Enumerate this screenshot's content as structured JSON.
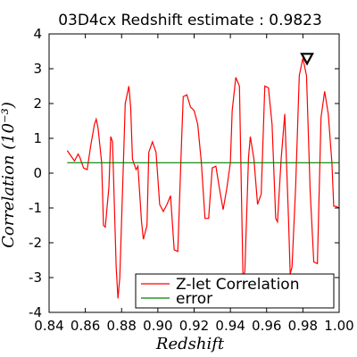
{
  "chart_data": {
    "type": "line",
    "title": "03D4cx Redshift estimate : 0.9823",
    "xlabel": "Redshift",
    "ylabel": "Correlation (10⁻³)",
    "xlim": [
      0.84,
      1.0
    ],
    "ylim": [
      -4,
      4
    ],
    "xticks": [
      "0.84",
      "0.86",
      "0.88",
      "0.90",
      "0.92",
      "0.94",
      "0.96",
      "0.98",
      "1.00"
    ],
    "yticks": [
      "-4",
      "-3",
      "-2",
      "-1",
      "0",
      "1",
      "2",
      "3",
      "4"
    ],
    "grid": false,
    "legend": "lower-right",
    "marker": {
      "x": 0.9823,
      "y": 3.3,
      "shape": "triangle-down"
    },
    "series": [
      {
        "name": "Z-let Correlation",
        "color": "#ff0000",
        "x": [
          0.85,
          0.852,
          0.854,
          0.856,
          0.857,
          0.859,
          0.861,
          0.863,
          0.865,
          0.866,
          0.867,
          0.869,
          0.87,
          0.871,
          0.873,
          0.874,
          0.875,
          0.877,
          0.878,
          0.879,
          0.881,
          0.882,
          0.884,
          0.885,
          0.886,
          0.888,
          0.889,
          0.891,
          0.892,
          0.894,
          0.895,
          0.897,
          0.899,
          0.901,
          0.903,
          0.905,
          0.907,
          0.909,
          0.911,
          0.913,
          0.914,
          0.916,
          0.918,
          0.92,
          0.922,
          0.924,
          0.926,
          0.928,
          0.93,
          0.932,
          0.934,
          0.936,
          0.938,
          0.94,
          0.941,
          0.943,
          0.945,
          0.947,
          0.948,
          0.95,
          0.951,
          0.953,
          0.955,
          0.957,
          0.959,
          0.961,
          0.963,
          0.965,
          0.966,
          0.968,
          0.97,
          0.972,
          0.973,
          0.974,
          0.976,
          0.978,
          0.98,
          0.982,
          0.984,
          0.986,
          0.988,
          0.99,
          0.992,
          0.994,
          0.996,
          0.997,
          0.998,
          1.0
        ],
        "y": [
          0.65,
          0.5,
          0.35,
          0.55,
          0.45,
          0.15,
          0.1,
          0.8,
          1.4,
          1.55,
          1.3,
          0.3,
          -1.5,
          -1.55,
          -0.4,
          1.05,
          0.9,
          -2.7,
          -3.6,
          -3.0,
          0.3,
          2.0,
          2.5,
          1.9,
          0.4,
          0.1,
          0.2,
          -1.4,
          -1.9,
          -1.5,
          0.6,
          0.9,
          0.6,
          -0.9,
          -1.1,
          -0.9,
          -0.65,
          -2.2,
          -2.25,
          0.8,
          2.2,
          2.25,
          1.9,
          1.8,
          1.4,
          0.3,
          -1.3,
          -1.3,
          0.15,
          0.2,
          -0.45,
          -1.05,
          -0.45,
          0.3,
          1.8,
          2.75,
          2.5,
          -3.1,
          -2.8,
          0.45,
          1.05,
          0.4,
          -0.9,
          -0.6,
          2.5,
          2.45,
          1.4,
          -1.3,
          -1.4,
          0.4,
          1.7,
          -1.2,
          -2.9,
          -2.7,
          -0.4,
          2.8,
          3.3,
          2.8,
          -0.5,
          -2.55,
          -2.6,
          1.6,
          2.35,
          1.7,
          0.3,
          -0.95,
          -0.95,
          -1.0
        ]
      },
      {
        "name": "error",
        "color": "#008000",
        "x": [
          0.85,
          1.0
        ],
        "y": [
          0.3,
          0.3
        ]
      }
    ]
  }
}
